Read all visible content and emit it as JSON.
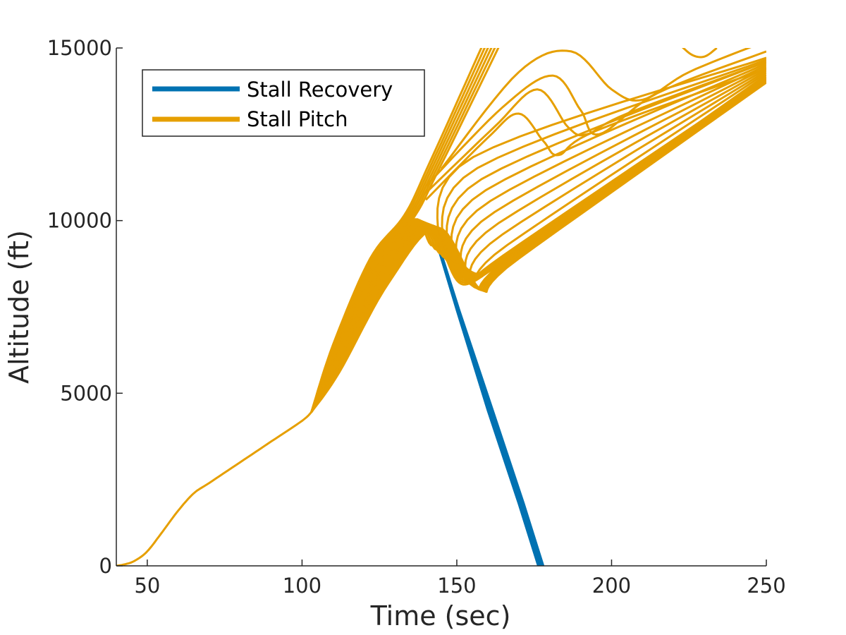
{
  "chart_data": {
    "type": "line",
    "title": "",
    "xlabel": "Time (sec)",
    "ylabel": "Altitude (ft)",
    "xlim": [
      40,
      250
    ],
    "ylim": [
      0,
      15000
    ],
    "x_ticks": [
      50,
      100,
      150,
      200,
      250
    ],
    "y_ticks": [
      0,
      5000,
      10000,
      15000
    ],
    "grid": false,
    "box": false,
    "legend": {
      "position": "top-left",
      "entries": [
        {
          "label": "Stall Recovery",
          "color": "#0072B2"
        },
        {
          "label": "Stall Pitch",
          "color": "#E69F00"
        }
      ]
    },
    "series": [
      {
        "name": "Stall Recovery",
        "color": "#0072B2",
        "description": "steep descent branch, dense bundle of trajectories",
        "x": [
          142,
          150,
          160,
          170,
          176.5
        ],
        "y": [
          9800,
          7400,
          4500,
          1800,
          0
        ],
        "x_end_alt": 178,
        "band": true
      },
      {
        "name": "Stall Pitch",
        "color": "#E69F00",
        "description": "common climb profile before divergence",
        "x": [
          40,
          43,
          46,
          50,
          55,
          60,
          65,
          70,
          80,
          90,
          100,
          103
        ],
        "y": [
          0,
          50,
          150,
          420,
          1000,
          1600,
          2100,
          2400,
          3000,
          3600,
          4200,
          4450
        ],
        "branch_start_x": 103,
        "branch_start_y": 4450,
        "branch_count": 20,
        "early_climb_end_x": [
          133,
          143
        ],
        "early_climb_end_y": [
          10100,
          9800
        ],
        "dip_min_x": 158,
        "dip_min_y": 8400,
        "final_x": 250,
        "final_y_range": [
          14000,
          15000
        ]
      }
    ]
  },
  "colors": {
    "recovery": "#0072B2",
    "pitch": "#E69F00",
    "axis": "#262626"
  }
}
